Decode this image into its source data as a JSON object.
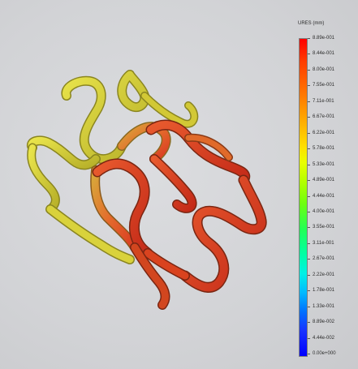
{
  "legend": {
    "title": "URES (mm)",
    "ticks": [
      "8.89e-001",
      "8.44e-001",
      "8.00e-001",
      "7.55e-001",
      "7.11e-001",
      "6.67e-001",
      "6.22e-001",
      "5.78e-001",
      "5.33e-001",
      "4.89e-001",
      "4.44e-001",
      "4.00e-001",
      "3.55e-001",
      "3.11e-001",
      "2.67e-001",
      "2.22e-001",
      "1.78e-001",
      "1.33e-001",
      "8.89e-002",
      "4.44e-002",
      "0.00e+000"
    ],
    "colors": {
      "max": "#ff0000",
      "high": "#ff7a00",
      "mid_high": "#ffdf00",
      "mid": "#6eff10",
      "mid_low": "#00f0e6",
      "low": "#0070ff",
      "min": "#0000ff"
    }
  },
  "viewport": {
    "background": "#d4d5d7",
    "model": "stent-wireframe",
    "strut_colors": {
      "back_left": "#d7d33a",
      "back_top": "#c8c02c",
      "front": "#e2562a",
      "front_dark": "#b63419"
    }
  }
}
